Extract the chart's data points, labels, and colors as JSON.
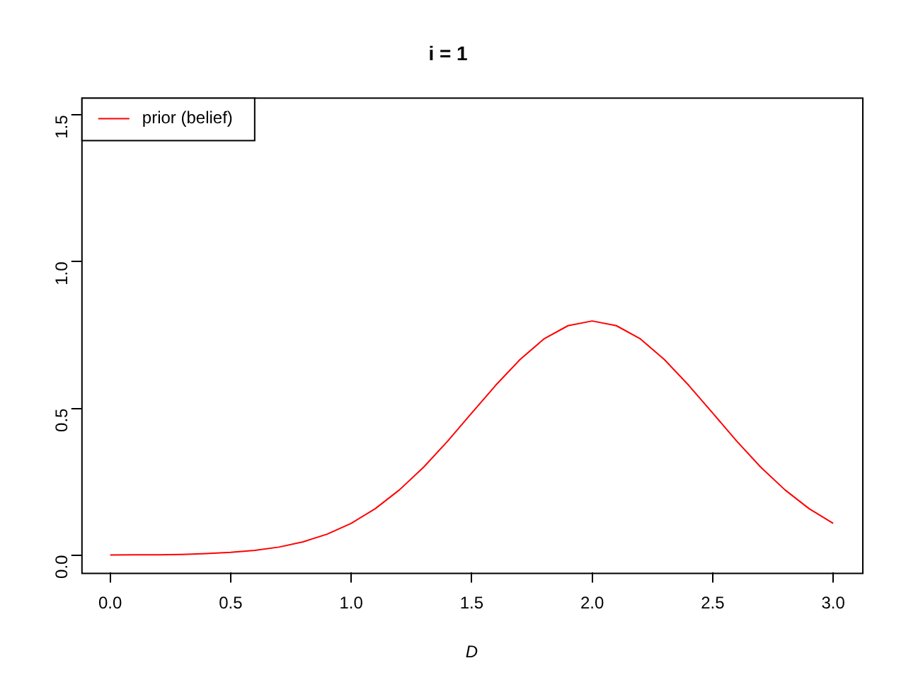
{
  "chart_data": {
    "type": "line",
    "title": "i = 1",
    "xlabel": "D",
    "x": [
      0,
      0.1,
      0.2,
      0.3,
      0.4,
      0.5,
      0.6,
      0.7,
      0.8,
      0.9,
      1.0,
      1.1,
      1.2,
      1.3,
      1.4,
      1.5,
      1.6,
      1.7,
      1.8,
      1.9,
      2.0,
      2.1,
      2.2,
      2.3,
      2.4,
      2.5,
      2.6,
      2.7,
      2.8,
      2.9,
      3.0
    ],
    "series": [
      {
        "name": "prior (belief)",
        "color": "#ff0000",
        "values": [
          0.0,
          0.001,
          0.001,
          0.002,
          0.005,
          0.009,
          0.016,
          0.027,
          0.045,
          0.071,
          0.108,
          0.158,
          0.222,
          0.299,
          0.388,
          0.484,
          0.579,
          0.666,
          0.737,
          0.782,
          0.798,
          0.782,
          0.737,
          0.666,
          0.579,
          0.484,
          0.388,
          0.299,
          0.222,
          0.158,
          0.108
        ]
      }
    ],
    "xlim": [
      -0.12,
      3.12
    ],
    "ylim": [
      -0.06,
      1.56
    ],
    "xticks": [
      {
        "value": 0,
        "label": "0.0"
      },
      0.5,
      {
        "value": 1,
        "label": "1.0"
      },
      1.5,
      {
        "value": 2,
        "label": "2.0"
      },
      2.5,
      {
        "value": 3,
        "label": "3.0"
      }
    ],
    "yticks": [
      {
        "value": 0,
        "label": "0.0"
      },
      0.5,
      {
        "value": 1,
        "label": "1.0"
      },
      1.5
    ],
    "grid": false,
    "legend": "top left",
    "marker": "none",
    "line_style": "solid"
  }
}
